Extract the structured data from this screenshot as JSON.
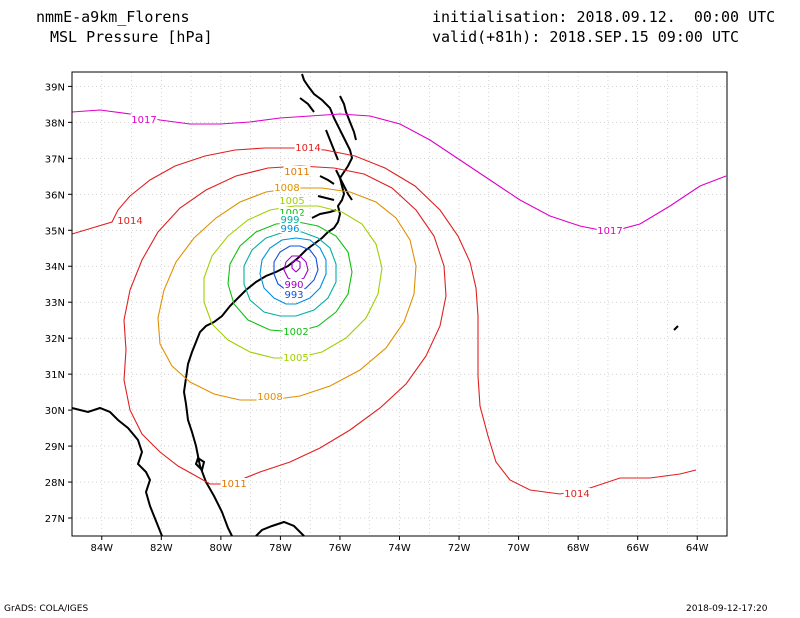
{
  "header": {
    "model": "nmmE-a9km_Florens",
    "variable": "MSL Pressure [hPa]",
    "init": "initialisation: 2018.09.12.  00:00 UTC",
    "valid": "valid(+81h): 2018.SEP.15 09:00 UTC"
  },
  "footer": {
    "left": "GrADS: COLA/IGES",
    "right": "2018-09-12-17:20"
  },
  "map": {
    "lon_ticks": [
      "84W",
      "82W",
      "80W",
      "78W",
      "76W",
      "74W",
      "72W",
      "70W",
      "68W",
      "66W",
      "64W"
    ],
    "lat_ticks": [
      "39N",
      "38N",
      "37N",
      "36N",
      "35N",
      "34N",
      "33N",
      "32N",
      "31N",
      "30N",
      "29N",
      "28N",
      "27N"
    ],
    "grid": true,
    "contour_colors": {
      "1017": "#e000c8",
      "1014": "#e02020",
      "1011": "#e07800",
      "1008": "#e09000",
      "1005": "#a0d000",
      "1002": "#10c010",
      "999": "#00b0a0",
      "996": "#0090e0",
      "993": "#1050e0",
      "990": "#a000c8"
    },
    "contour_labels": [
      {
        "text": "1017",
        "level": "1017"
      },
      {
        "text": "1017",
        "level": "1017"
      },
      {
        "text": "1014",
        "level": "1014"
      },
      {
        "text": "1014",
        "level": "1014"
      },
      {
        "text": "1014",
        "level": "1014"
      },
      {
        "text": "1011",
        "level": "1011"
      },
      {
        "text": "1011",
        "level": "1011"
      },
      {
        "text": "1008",
        "level": "1008"
      },
      {
        "text": "1008",
        "level": "1008"
      },
      {
        "text": "1005",
        "level": "1005"
      },
      {
        "text": "1005",
        "level": "1005"
      },
      {
        "text": "1002",
        "level": "1002"
      },
      {
        "text": "1002",
        "level": "1002"
      },
      {
        "text": "999",
        "level": "999"
      },
      {
        "text": "996",
        "level": "996"
      },
      {
        "text": "993",
        "level": "993"
      },
      {
        "text": "990",
        "level": "990"
      }
    ]
  }
}
